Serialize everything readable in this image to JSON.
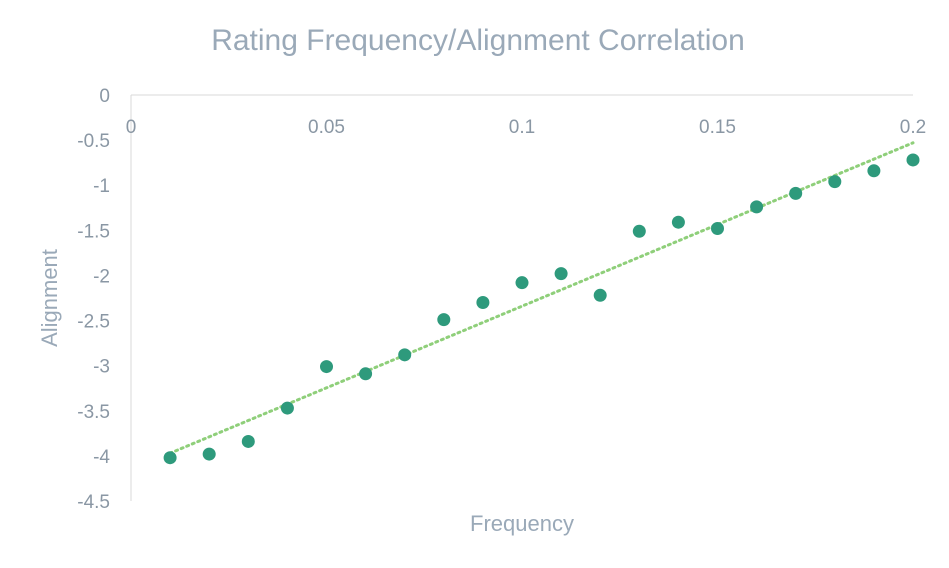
{
  "chart_data": {
    "type": "scatter",
    "title": "Rating Frequency/Alignment Correlation",
    "xlabel": "Frequency",
    "ylabel": "Alignment",
    "xlim": [
      0,
      0.2
    ],
    "ylim": [
      -4.5,
      0
    ],
    "x_ticks": [
      "0",
      "0.05",
      "0.1",
      "0.15",
      "0.2"
    ],
    "y_ticks": [
      "0",
      "-0.5",
      "-1",
      "-1.5",
      "-2",
      "-2.5",
      "-3",
      "-3.5",
      "-4",
      "-4.5"
    ],
    "x_axis_position": "top",
    "grid": false,
    "legend": "none",
    "series": [
      {
        "marker_color": "#2e9a7c",
        "points": [
          {
            "x": 0.01,
            "y": -4.02
          },
          {
            "x": 0.02,
            "y": -3.98
          },
          {
            "x": 0.03,
            "y": -3.84
          },
          {
            "x": 0.04,
            "y": -3.47
          },
          {
            "x": 0.05,
            "y": -3.01
          },
          {
            "x": 0.06,
            "y": -3.09
          },
          {
            "x": 0.07,
            "y": -2.88
          },
          {
            "x": 0.08,
            "y": -2.49
          },
          {
            "x": 0.09,
            "y": -2.3
          },
          {
            "x": 0.1,
            "y": -2.08
          },
          {
            "x": 0.11,
            "y": -1.98
          },
          {
            "x": 0.12,
            "y": -2.22
          },
          {
            "x": 0.13,
            "y": -1.51
          },
          {
            "x": 0.14,
            "y": -1.41
          },
          {
            "x": 0.15,
            "y": -1.48
          },
          {
            "x": 0.16,
            "y": -1.24
          },
          {
            "x": 0.17,
            "y": -1.09
          },
          {
            "x": 0.18,
            "y": -0.96
          },
          {
            "x": 0.19,
            "y": -0.84
          },
          {
            "x": 0.2,
            "y": -0.72
          }
        ]
      }
    ],
    "trendline": {
      "style": "dotted",
      "color": "#8fcf7a",
      "from": {
        "x": 0.01,
        "y": -3.97
      },
      "to": {
        "x": 0.2,
        "y": -0.53
      }
    }
  }
}
